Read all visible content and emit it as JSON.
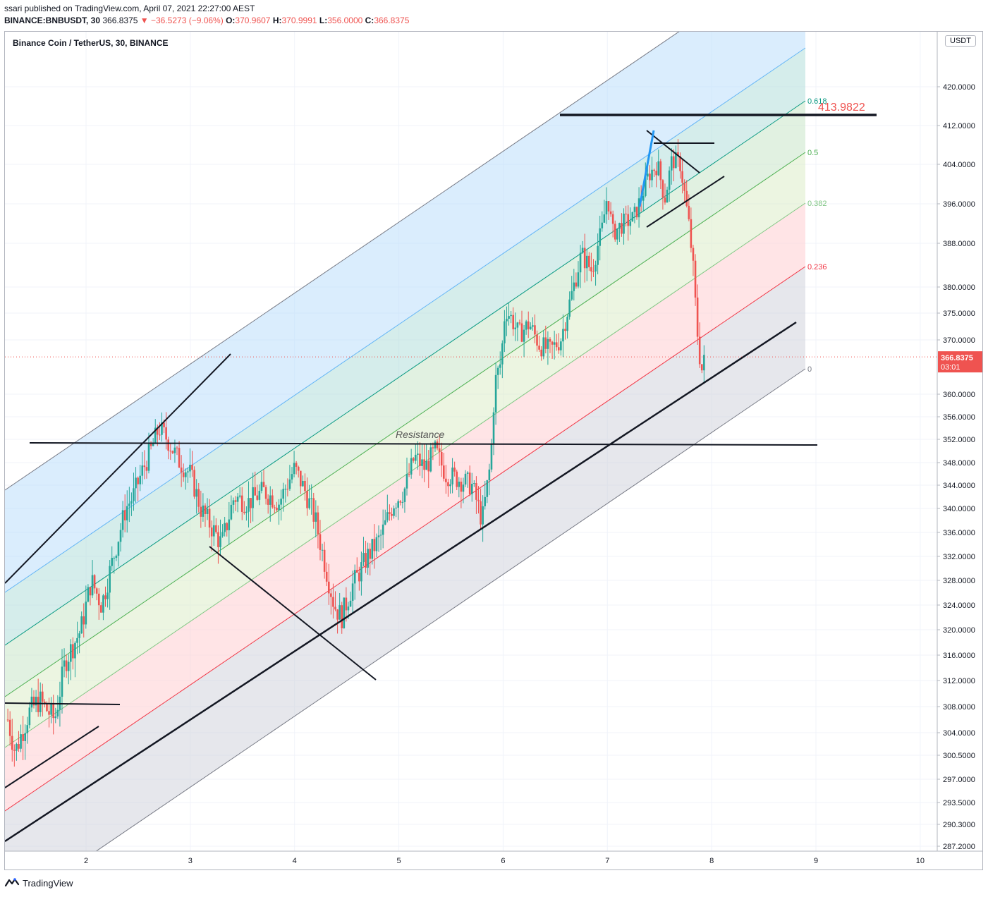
{
  "header": {
    "publish_line": "ssari published on TradingView.com, April 07, 2021 22:27:00 AEST",
    "symbol": "BINANCE:BNBUSDT, 30",
    "last": "366.8375",
    "change": "▼ −36.5273 (−9.06%)",
    "o_label": "O:",
    "o": "370.9607",
    "h_label": "H:",
    "h": "370.9991",
    "l_label": "L:",
    "l": "356.0000",
    "c_label": "C:",
    "c": "366.8375"
  },
  "chart_title": "Binance Coin / TetherUS, 30, BINANCE",
  "currency_label": "USDT",
  "footer_brand": "TradingView",
  "colors": {
    "up": "#26a69a",
    "down": "#ef5350",
    "fib_0618": "#089981",
    "fib_05": "#4caf50",
    "fib_0382": "#81c784",
    "fib_0236": "#f23645",
    "fib_0": "#787b86",
    "band_blue": "#bbdefb",
    "band_teal": "#b2dfdb",
    "band_green": "#c8e6c9",
    "band_lightgreen": "#dcedc8",
    "band_red": "#ffcdd2",
    "band_gray": "#d1d4dc"
  },
  "chart_data": {
    "type": "candlestick",
    "title": "Binance Coin / TetherUS, 30, BINANCE",
    "x_ticks": [
      "2",
      "3",
      "4",
      "5",
      "6",
      "7",
      "8",
      "9",
      "10"
    ],
    "x_tick_values": [
      2,
      3,
      4,
      5,
      6,
      7,
      8,
      9,
      10
    ],
    "x_range": [
      1.23,
      10.6
    ],
    "y_ticks": [
      "420.0000",
      "412.0000",
      "404.0000",
      "396.0000",
      "388.0000",
      "380.0000",
      "375.0000",
      "370.0000",
      "360.0000",
      "356.0000",
      "352.0000",
      "348.0000",
      "344.0000",
      "340.0000",
      "336.0000",
      "332.0000",
      "328.0000",
      "324.0000",
      "320.0000",
      "316.0000",
      "312.0000",
      "308.0000",
      "304.0000",
      "300.5000",
      "297.0000",
      "293.5000",
      "290.3000",
      "287.2000"
    ],
    "y_tick_values": [
      420,
      412,
      404,
      396,
      388,
      380,
      375,
      370,
      360,
      356,
      352,
      348,
      344,
      340,
      336,
      332,
      328,
      324,
      320,
      316,
      312,
      308,
      304,
      300.5,
      297,
      293.5,
      290.3,
      287.2
    ],
    "y_log": true,
    "y_range": [
      285.5,
      428
    ],
    "last_price": "366.8375",
    "countdown": "03:01",
    "price_path": [
      [
        1.25,
        306
      ],
      [
        1.32,
        301
      ],
      [
        1.45,
        307
      ],
      [
        1.55,
        309
      ],
      [
        1.7,
        306
      ],
      [
        1.8,
        315
      ],
      [
        1.95,
        320
      ],
      [
        2.05,
        328
      ],
      [
        2.15,
        324
      ],
      [
        2.25,
        331
      ],
      [
        2.38,
        340
      ],
      [
        2.45,
        342
      ],
      [
        2.55,
        347
      ],
      [
        2.62,
        350
      ],
      [
        2.7,
        354
      ],
      [
        2.78,
        352
      ],
      [
        2.9,
        348
      ],
      [
        3.0,
        346
      ],
      [
        3.1,
        340
      ],
      [
        3.2,
        337
      ],
      [
        3.3,
        334
      ],
      [
        3.42,
        342
      ],
      [
        3.55,
        341
      ],
      [
        3.7,
        343
      ],
      [
        3.85,
        341
      ],
      [
        4.0,
        347
      ],
      [
        4.1,
        343
      ],
      [
        4.2,
        338
      ],
      [
        4.3,
        330
      ],
      [
        4.38,
        324
      ],
      [
        4.45,
        322
      ],
      [
        4.55,
        327
      ],
      [
        4.7,
        332
      ],
      [
        4.82,
        335
      ],
      [
        4.95,
        341
      ],
      [
        5.05,
        343
      ],
      [
        5.15,
        349
      ],
      [
        5.25,
        347
      ],
      [
        5.35,
        350
      ],
      [
        5.45,
        346
      ],
      [
        5.58,
        345
      ],
      [
        5.7,
        344
      ],
      [
        5.8,
        338
      ],
      [
        5.88,
        348
      ],
      [
        5.92,
        362
      ],
      [
        5.98,
        366
      ],
      [
        6.02,
        376
      ],
      [
        6.08,
        374
      ],
      [
        6.15,
        371
      ],
      [
        6.25,
        373
      ],
      [
        6.35,
        369
      ],
      [
        6.45,
        368
      ],
      [
        6.55,
        370
      ],
      [
        6.65,
        378
      ],
      [
        6.75,
        386
      ],
      [
        6.85,
        383
      ],
      [
        6.95,
        391
      ],
      [
        7.0,
        398
      ],
      [
        7.05,
        390
      ],
      [
        7.15,
        392
      ],
      [
        7.25,
        393
      ],
      [
        7.32,
        397
      ],
      [
        7.4,
        402
      ],
      [
        7.48,
        404
      ],
      [
        7.55,
        397
      ],
      [
        7.62,
        405
      ],
      [
        7.7,
        404
      ],
      [
        7.78,
        392
      ],
      [
        7.82,
        384
      ],
      [
        7.86,
        372
      ],
      [
        7.9,
        364
      ],
      [
        7.94,
        366.84
      ]
    ],
    "fib_channel_levels": [
      {
        "label": "0.618",
        "value": 0.618
      },
      {
        "label": "0.5",
        "value": 0.5
      },
      {
        "label": "0.382",
        "value": 0.382
      },
      {
        "label": "0.236",
        "value": 0.236
      },
      {
        "label": "0",
        "value": 0
      }
    ],
    "annotations": [
      {
        "text": "Resistance"
      },
      {
        "text": "413.9822"
      }
    ],
    "grid": true
  }
}
